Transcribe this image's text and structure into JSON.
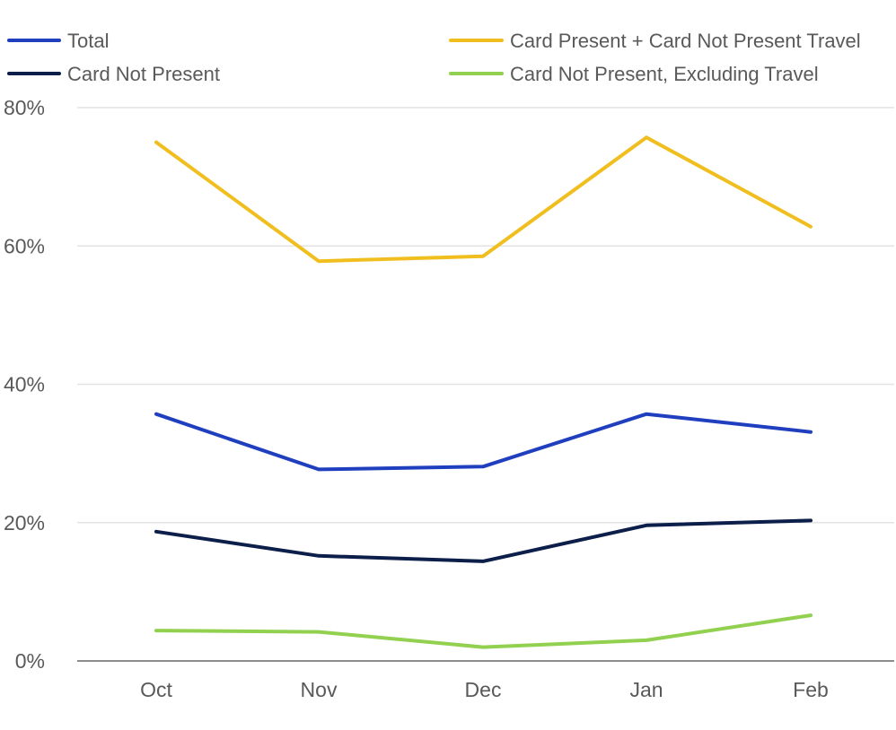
{
  "chart_data": {
    "type": "line",
    "title": "",
    "xlabel": "",
    "ylabel": "",
    "categories": [
      "Oct",
      "Nov",
      "Dec",
      "Jan",
      "Feb"
    ],
    "ylim": [
      0,
      80
    ],
    "yticks": [
      0,
      20,
      40,
      60,
      80
    ],
    "ytick_labels": [
      "0%",
      "20%",
      "40%",
      "60%",
      "80%"
    ],
    "grid": true,
    "legend_position": "top",
    "series": [
      {
        "name": "Total",
        "color": "#1f3fbf",
        "values": [
          35.7,
          27.7,
          28.1,
          35.7,
          33.1
        ]
      },
      {
        "name": "Card Present + Card Not Present Travel",
        "color": "#f0bf1f",
        "values": [
          75.0,
          57.8,
          58.5,
          75.7,
          62.8
        ]
      },
      {
        "name": "Card Not Present",
        "color": "#0c1f4a",
        "values": [
          18.7,
          15.2,
          14.4,
          19.6,
          20.3
        ]
      },
      {
        "name": "Card Not Present, Excluding Travel",
        "color": "#92d050",
        "values": [
          4.4,
          4.2,
          2.0,
          3.0,
          6.6
        ]
      }
    ]
  }
}
